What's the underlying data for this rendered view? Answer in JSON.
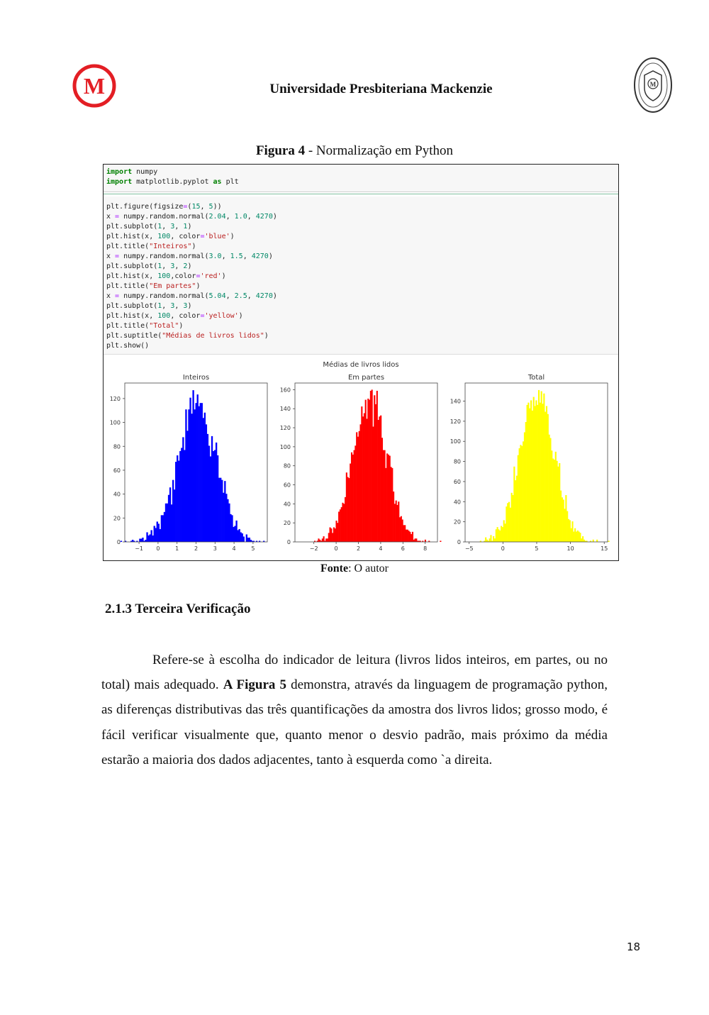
{
  "header": {
    "title": "Universidade Presbiteriana Mackenzie",
    "logo_letter": "M",
    "seal_letter": "M",
    "brand_color": "#e31e24"
  },
  "figure": {
    "caption_label": "Figura 4",
    "caption_text": " - Normalização em Python",
    "code_cell_1": [
      "import numpy",
      "import matplotlib.pyplot as plt"
    ],
    "code_cell_2": [
      "plt.figure(figsize=(15, 5))",
      "x = numpy.random.normal(2.04, 1.0, 4270)",
      "plt.subplot(1, 3, 1)",
      "plt.hist(x, 100, color='blue')",
      "plt.title(\"Inteiros\")",
      "x = numpy.random.normal(3.0, 1.5, 4270)",
      "plt.subplot(1, 3, 2)",
      "plt.hist(x, 100,color='red')",
      "plt.title(\"Em partes\")",
      "x = numpy.random.normal(5.04, 2.5, 4270)",
      "plt.subplot(1, 3, 3)",
      "plt.hist(x, 100, color='yellow')",
      "plt.title(\"Total\")",
      "plt.suptitle(\"Médias de livros lidos\")",
      "plt.show()"
    ],
    "source_label": "Fonte",
    "source_text": ": O autor"
  },
  "chart_data": {
    "suptitle": "Médias de livros lidos",
    "charts": [
      {
        "type": "bar",
        "subtype": "histogram",
        "title": "Inteiros",
        "color": "#0000ff",
        "mean": 2.04,
        "std": 1.0,
        "n": 4270,
        "bins": 100,
        "xlim": [
          -1.75,
          5.75
        ],
        "ylim": [
          0,
          133
        ],
        "xticks": [
          -1,
          0,
          1,
          2,
          3,
          4,
          5
        ],
        "yticks": [
          0,
          20,
          40,
          60,
          80,
          100,
          120
        ],
        "peak": 127
      },
      {
        "type": "bar",
        "subtype": "histogram",
        "title": "Em partes",
        "color": "#ff0000",
        "mean": 3.0,
        "std": 1.5,
        "n": 4270,
        "bins": 100,
        "xlim": [
          -3.7,
          9.1
        ],
        "ylim": [
          0,
          167
        ],
        "xticks": [
          -2,
          0,
          2,
          4,
          6,
          8
        ],
        "yticks": [
          0,
          20,
          40,
          60,
          80,
          100,
          120,
          140,
          160
        ],
        "peak": 160
      },
      {
        "type": "bar",
        "subtype": "histogram",
        "title": "Total",
        "color": "#ffff00",
        "mean": 5.04,
        "std": 2.5,
        "n": 4270,
        "bins": 100,
        "xlim": [
          -5.6,
          15.5
        ],
        "ylim": [
          0,
          158
        ],
        "xticks": [
          -5,
          0,
          5,
          10,
          15
        ],
        "yticks": [
          0,
          20,
          40,
          60,
          80,
          100,
          120,
          140
        ],
        "peak": 151
      }
    ]
  },
  "section": {
    "title": "2.1.3 Terceira Verificação"
  },
  "paragraph": {
    "part1": "Refere-se à escolha do indicador de leitura (livros lidos inteiros, em partes, ou no total) mais adequado. ",
    "bold": "A Figura 5",
    "part2": " demonstra, através da linguagem de programação python, as diferenças distributivas das três quantificações da amostra dos livros lidos; grosso modo, é fácil verificar visualmente que, quanto menor o desvio padrão, mais próximo da média estarão a maioria dos dados adjacentes, tanto à esquerda como `a direita."
  },
  "page_number": "18"
}
